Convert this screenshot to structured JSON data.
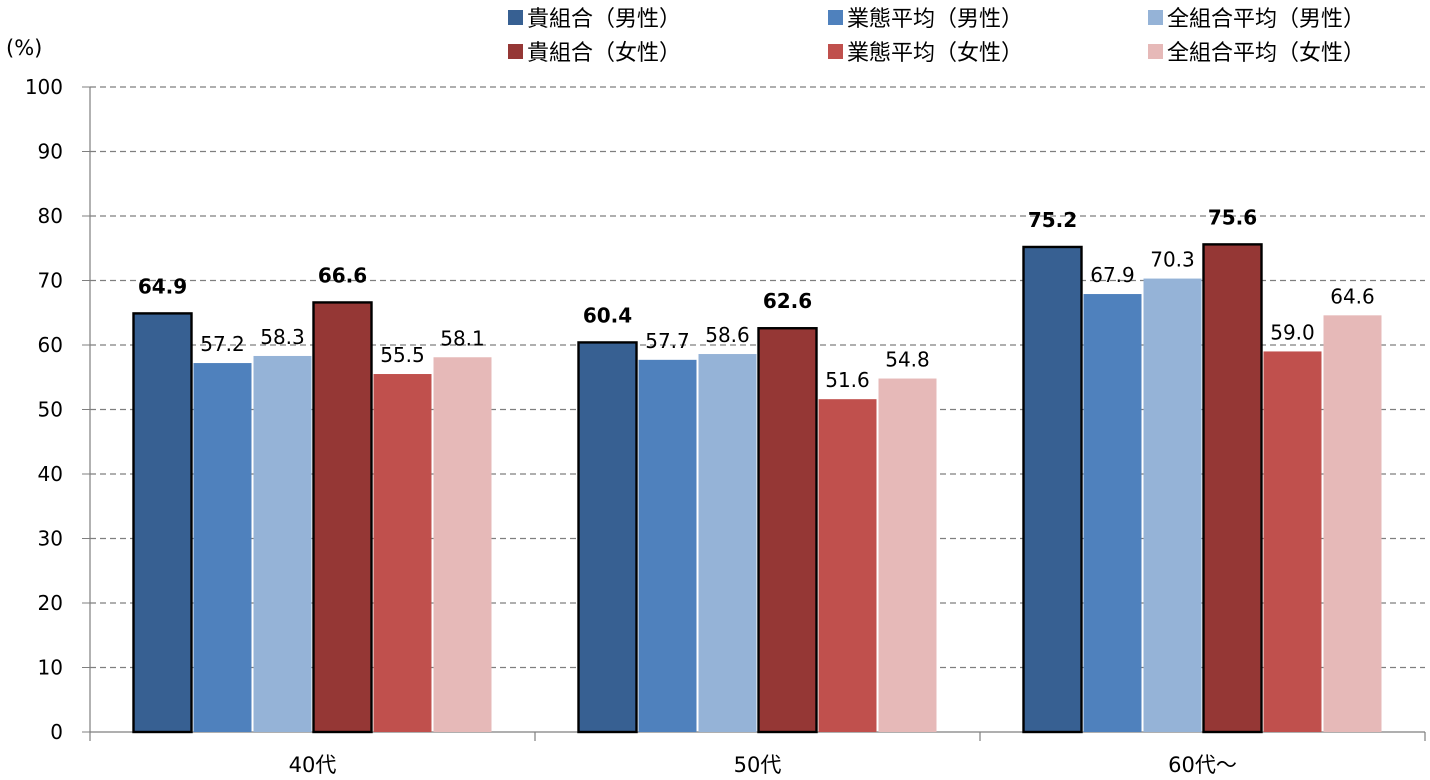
{
  "chart_data": {
    "type": "bar",
    "title": "",
    "xlabel": "",
    "ylabel": "(%)",
    "ylim": [
      0,
      100
    ],
    "yticks": [
      0,
      10,
      20,
      30,
      40,
      50,
      60,
      70,
      80,
      90,
      100
    ],
    "grid": true,
    "legend_position": "top-right",
    "categories": [
      "40代",
      "50代",
      "60代～"
    ],
    "series": [
      {
        "name": "貴組合（男性）",
        "values": [
          64.9,
          60.4,
          75.2
        ],
        "color": "#376092",
        "bold_labels": true
      },
      {
        "name": "業態平均（男性）",
        "values": [
          57.2,
          57.7,
          67.9
        ],
        "color": "#4f81bd",
        "bold_labels": false
      },
      {
        "name": "全組合平均（男性）",
        "values": [
          58.3,
          58.6,
          70.3
        ],
        "color": "#95b3d7",
        "bold_labels": false
      },
      {
        "name": "貴組合（女性）",
        "values": [
          66.6,
          62.6,
          75.6
        ],
        "color": "#953735",
        "bold_labels": true
      },
      {
        "name": "業態平均（女性）",
        "values": [
          55.5,
          51.6,
          59.0
        ],
        "color": "#c0504d",
        "bold_labels": false
      },
      {
        "name": "全組合平均（女性）",
        "values": [
          58.1,
          54.8,
          64.6
        ],
        "color": "#e6b9b8",
        "bold_labels": false
      }
    ]
  }
}
